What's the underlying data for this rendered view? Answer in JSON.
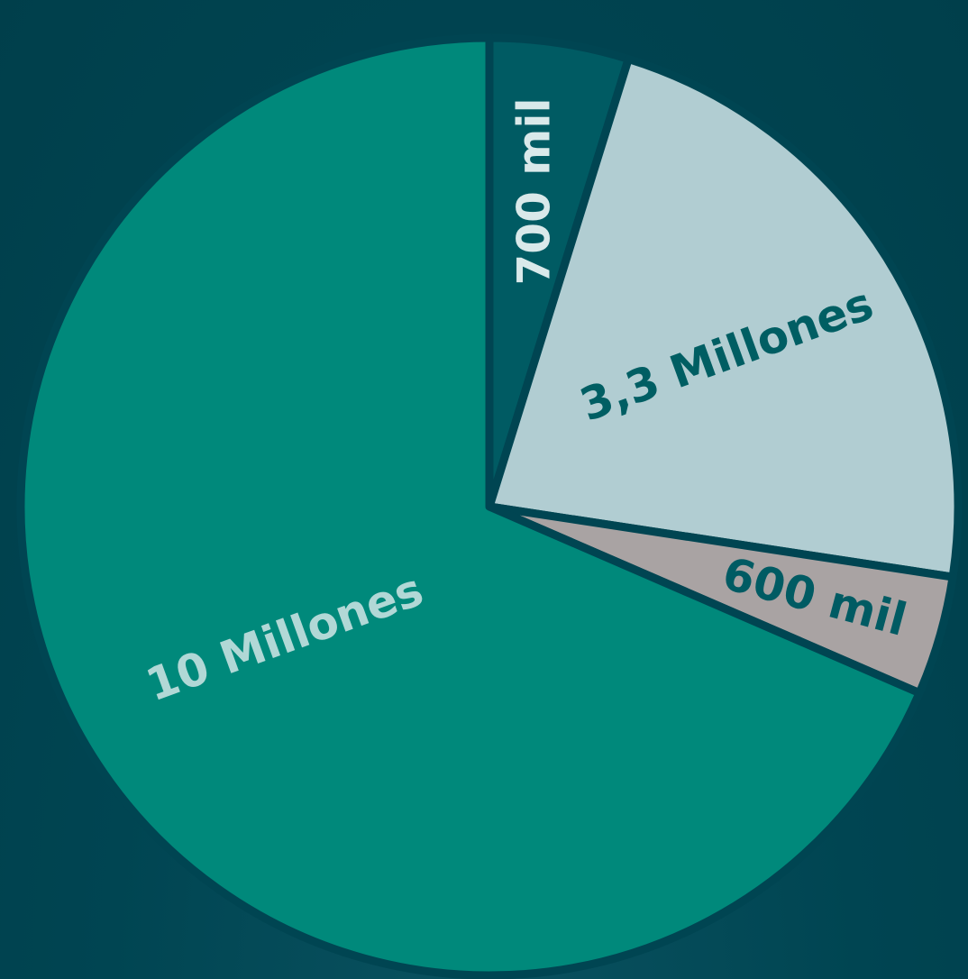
{
  "chart_data": {
    "type": "pie",
    "start": "top",
    "direction": "clockwise",
    "slices": [
      {
        "label": "700 mil",
        "value": 700000,
        "color": "#005b63",
        "text_color": "#d9e9ea"
      },
      {
        "label": "3,3 Millones",
        "value": 3300000,
        "color": "#b1cdd2",
        "text_color": "#005e63"
      },
      {
        "label": "600 mil",
        "value": 600000,
        "color": "#a9a3a3",
        "text_color": "#005b63"
      },
      {
        "label": "10 Millones",
        "value": 10000000,
        "color": "#00897b",
        "text_color": "#b1d8d6"
      }
    ],
    "slice_border_color": "#004552"
  }
}
